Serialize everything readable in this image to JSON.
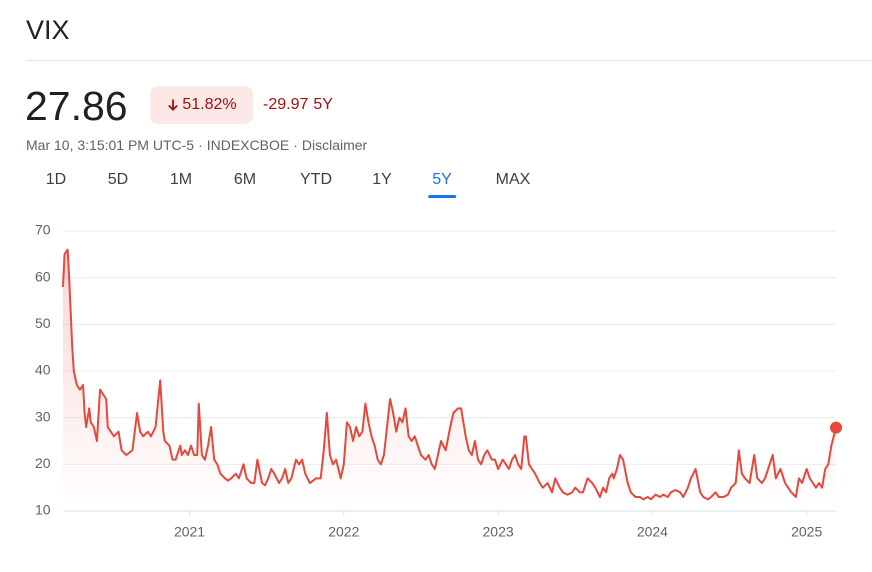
{
  "header": {
    "title": "VIX",
    "price": "27.86",
    "change_pct": "51.82%",
    "change": "-29.97",
    "period": "5Y",
    "meta": [
      "Mar 10, 3:15:01 PM UTC-5",
      "INDEXCBOE",
      "Disclaimer"
    ],
    "separator": "·",
    "tabs": [
      "1D",
      "5D",
      "1M",
      "6M",
      "YTD",
      "1Y",
      "5Y",
      "MAX"
    ],
    "selected_tab": 6
  },
  "chart_data": {
    "type": "line",
    "color": "#e5483c",
    "grid": true,
    "xlim": [
      2020.18,
      2025.19
    ],
    "xticks": [
      2021,
      2022,
      2023,
      2024,
      2025
    ],
    "ylim": [
      10,
      70
    ],
    "yticks": [
      10,
      20,
      30,
      40,
      50,
      60,
      70
    ],
    "x": [
      2020.18,
      2020.19,
      2020.21,
      2020.22,
      2020.24,
      2020.25,
      2020.27,
      2020.29,
      2020.31,
      2020.32,
      2020.33,
      2020.35,
      2020.36,
      2020.38,
      2020.4,
      2020.42,
      2020.44,
      2020.46,
      2020.47,
      2020.49,
      2020.51,
      2020.54,
      2020.56,
      2020.59,
      2020.61,
      2020.63,
      2020.66,
      2020.68,
      2020.7,
      2020.73,
      2020.75,
      2020.78,
      2020.81,
      2020.83,
      2020.84,
      2020.87,
      2020.89,
      2020.91,
      2020.94,
      2020.95,
      2020.97,
      2020.99,
      2021.01,
      2021.03,
      2021.05,
      2021.06,
      2021.08,
      2021.1,
      2021.12,
      2021.14,
      2021.16,
      2021.18,
      2021.2,
      2021.23,
      2021.25,
      2021.27,
      2021.3,
      2021.32,
      2021.35,
      2021.37,
      2021.4,
      2021.42,
      2021.44,
      2021.47,
      2021.49,
      2021.51,
      2021.53,
      2021.55,
      2021.58,
      2021.6,
      2021.62,
      2021.64,
      2021.66,
      2021.69,
      2021.71,
      2021.73,
      2021.75,
      2021.78,
      2021.8,
      2021.82,
      2021.85,
      2021.87,
      2021.89,
      2021.91,
      2021.93,
      2021.95,
      2021.98,
      2022.0,
      2022.02,
      2022.04,
      2022.06,
      2022.08,
      2022.1,
      2022.12,
      2022.14,
      2022.16,
      2022.18,
      2022.2,
      2022.22,
      2022.24,
      2022.26,
      2022.28,
      2022.3,
      2022.32,
      2022.34,
      2022.36,
      2022.38,
      2022.4,
      2022.42,
      2022.44,
      2022.46,
      2022.48,
      2022.5,
      2022.53,
      2022.55,
      2022.57,
      2022.59,
      2022.61,
      2022.63,
      2022.66,
      2022.69,
      2022.71,
      2022.74,
      2022.76,
      2022.79,
      2022.81,
      2022.83,
      2022.85,
      2022.87,
      2022.89,
      2022.91,
      2022.93,
      2022.96,
      2022.98,
      2023.0,
      2023.03,
      2023.05,
      2023.07,
      2023.09,
      2023.11,
      2023.13,
      2023.15,
      2023.17,
      2023.18,
      2023.2,
      2023.22,
      2023.24,
      2023.27,
      2023.29,
      2023.32,
      2023.35,
      2023.37,
      2023.4,
      2023.42,
      2023.45,
      2023.48,
      2023.5,
      2023.53,
      2023.55,
      2023.58,
      2023.61,
      2023.63,
      2023.66,
      2023.68,
      2023.7,
      2023.72,
      2023.74,
      2023.75,
      2023.77,
      2023.79,
      2023.81,
      2023.84,
      2023.86,
      2023.89,
      2023.92,
      2023.94,
      2023.97,
      2023.99,
      2024.02,
      2024.05,
      2024.07,
      2024.1,
      2024.12,
      2024.15,
      2024.18,
      2024.2,
      2024.23,
      2024.25,
      2024.28,
      2024.31,
      2024.33,
      2024.36,
      2024.38,
      2024.41,
      2024.43,
      2024.46,
      2024.49,
      2024.51,
      2024.54,
      2024.56,
      2024.58,
      2024.6,
      2024.63,
      2024.66,
      2024.68,
      2024.71,
      2024.73,
      2024.76,
      2024.78,
      2024.8,
      2024.83,
      2024.86,
      2024.88,
      2024.9,
      2024.93,
      2024.95,
      2024.97,
      2025.0,
      2025.02,
      2025.04,
      2025.06,
      2025.08,
      2025.1,
      2025.12,
      2025.14,
      2025.16,
      2025.19
    ],
    "values": [
      58,
      65,
      66,
      60,
      45,
      40,
      37,
      36,
      37,
      31,
      28,
      32,
      29,
      28,
      25,
      36,
      35,
      34,
      28,
      27,
      26,
      27,
      23,
      22,
      22.5,
      23,
      31,
      27,
      26,
      27,
      26,
      28,
      38,
      27,
      25,
      24,
      21,
      21,
      24,
      22,
      23,
      22,
      24,
      22,
      22,
      33,
      22,
      21,
      24,
      28,
      21,
      20,
      18,
      17,
      16.5,
      17,
      18,
      17,
      20,
      17,
      16,
      16,
      21,
      16,
      15.5,
      17,
      19,
      18,
      16,
      17,
      19,
      16,
      17,
      21,
      20,
      21,
      18,
      16,
      16.5,
      17,
      17,
      23,
      31,
      22,
      20,
      21,
      17,
      20,
      29,
      28,
      25,
      28,
      26,
      27,
      33,
      29,
      26,
      24,
      21,
      20,
      22,
      28,
      34,
      31,
      27,
      30,
      29,
      32,
      26,
      25,
      26,
      24,
      22,
      21,
      22,
      20,
      19,
      22,
      25,
      23,
      28,
      31,
      32,
      32,
      26,
      23,
      22,
      25,
      21,
      20,
      22,
      23,
      21,
      21,
      19,
      21,
      20,
      19,
      21,
      22,
      20,
      19,
      26,
      26,
      20,
      19,
      18,
      16,
      15,
      16,
      14,
      17,
      15,
      14,
      13.5,
      14,
      15,
      14,
      14,
      17,
      16,
      15,
      13,
      15,
      14,
      17,
      18,
      17,
      19,
      22,
      21,
      16,
      14,
      13,
      13,
      12.5,
      13,
      12.5,
      13.5,
      13,
      13.5,
      13,
      14,
      14.5,
      14,
      13,
      15,
      17,
      19,
      14,
      13,
      12.5,
      13,
      14,
      13,
      13,
      13.5,
      15,
      16,
      23,
      18,
      17,
      16,
      22,
      17,
      16,
      17,
      20,
      22,
      17,
      19,
      16,
      15,
      14,
      13,
      17,
      16,
      19,
      17,
      16,
      15,
      16,
      15,
      19,
      20,
      24,
      27.86
    ]
  }
}
